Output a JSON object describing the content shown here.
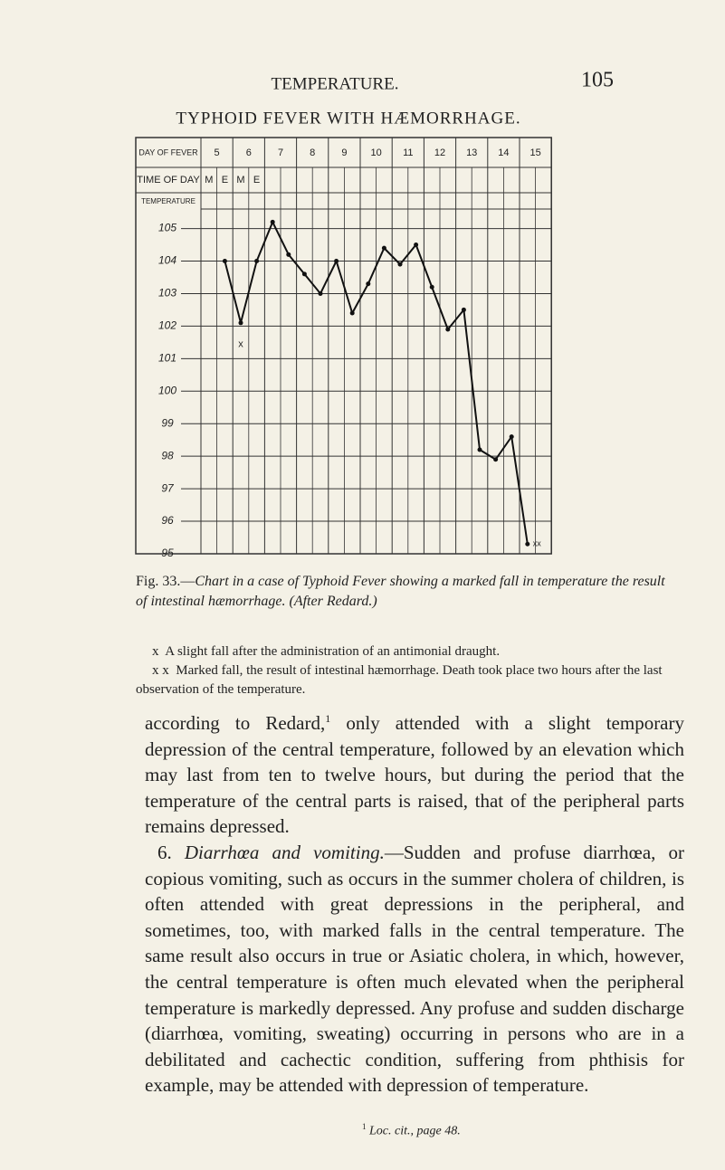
{
  "header": {
    "running_title": "TEMPERATURE.",
    "page_number": "105"
  },
  "chart_data": {
    "type": "line",
    "title": "TYPHOID FEVER WITH HÆMORRHAGE.",
    "row_labels": [
      "DAY OF FEVER",
      "TIME OF DAY",
      "TEMPERATURE"
    ],
    "days": [
      5,
      6,
      7,
      8,
      9,
      10,
      11,
      12,
      13,
      14,
      15
    ],
    "categories": [
      "M",
      "E",
      "M",
      "E",
      null,
      null,
      null,
      null,
      null,
      null,
      null,
      null,
      null,
      null,
      null,
      null,
      null,
      null,
      null,
      null,
      null,
      null
    ],
    "series": [
      {
        "name": "Temperature",
        "color": "#111",
        "values": [
          null,
          104.0,
          102.1,
          104.0,
          105.2,
          104.2,
          103.6,
          103.0,
          104.0,
          102.4,
          103.3,
          104.4,
          103.9,
          104.5,
          103.2,
          101.9,
          102.5,
          98.2,
          97.9,
          98.6,
          95.3,
          null
        ]
      }
    ],
    "ylim": [
      95,
      105.6
    ],
    "yticks": [
      95,
      96,
      97,
      98,
      99,
      100,
      101,
      102,
      103,
      104,
      105
    ],
    "grid": true,
    "annotations": [
      "x",
      "xx"
    ]
  },
  "caption": {
    "label": "Fig. 33.—",
    "text": "Chart in a case of Typhoid Fever showing a marked fall in temperature the result of intestinal hæmorrhage. (After Redard.)"
  },
  "notes": [
    {
      "marker": "x",
      "text": "A slight fall after the administration of an antimonial draught."
    },
    {
      "marker": "x x",
      "text": "Marked fall, the result of intestinal hæmorrhage. Death took place two hours after the last observation of the temperature."
    }
  ],
  "body": {
    "p1": [
      "according to Redard,",
      "1",
      " only attended with a slight temporary depression of the central temperature, followed by an elevation which may last from ten to twelve hours, but during the period that the temperature of the central parts is raised, that of the peripheral parts remains depressed."
    ],
    "p2": [
      "6. ",
      "Diarrhœa and vomiting.",
      "—Sudden and profuse diarrhœa, or copious vomiting, such as occurs in the summer cholera of children, is often attended with great depressions in the peripheral, and sometimes, too, with marked falls in the central temperature. The same result also occurs in true or Asiatic cholera, in which, however, the central temperature is often much elevated when the peripheral temperature is markedly depressed. Any profuse and sudden discharge (diarrhœa, vomiting, sweating) occurring in persons who are in a debilitated and cachectic condition, suffering from phthisis for example, may be attended with depression of temperature."
    ]
  },
  "footnote": {
    "marker": "1",
    "text": "Loc. cit., page 48."
  }
}
